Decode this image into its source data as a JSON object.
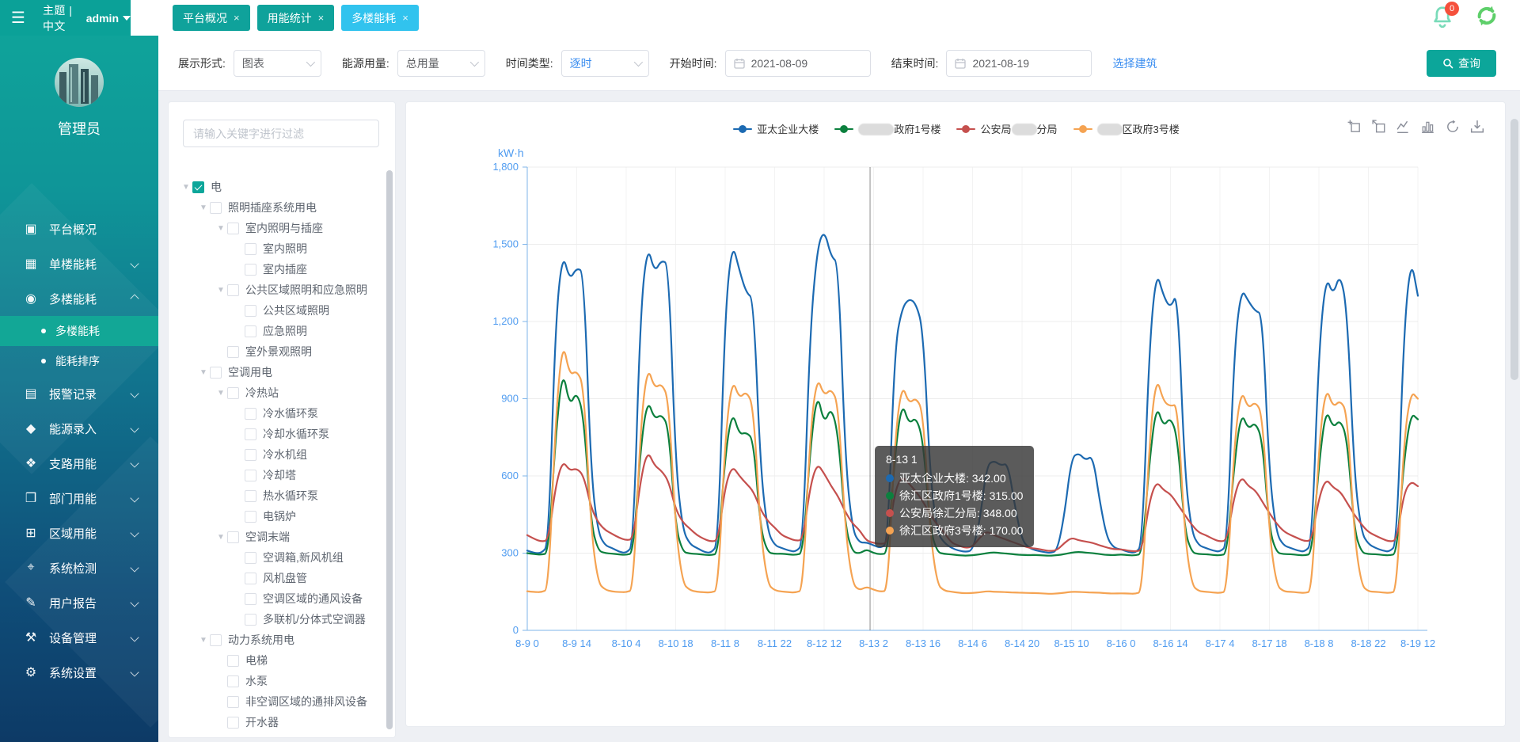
{
  "header": {
    "brand": "主题 | 中文",
    "user": "admin",
    "notification_count": "0",
    "tabs": [
      {
        "label": "平台概况",
        "close": "×",
        "active": false
      },
      {
        "label": "用能统计",
        "close": "×",
        "active": false
      },
      {
        "label": "多楼能耗",
        "close": "×",
        "active": true
      }
    ]
  },
  "sidebar": {
    "role": "管理员",
    "items": [
      {
        "icon": "platform-overview",
        "glyph": "▣",
        "label": "平台概况",
        "chevron": ""
      },
      {
        "icon": "single-building-energy",
        "glyph": "▦",
        "label": "单楼能耗",
        "chevron": "down"
      },
      {
        "icon": "multi-building-energy",
        "glyph": "◉",
        "label": "多楼能耗",
        "chevron": "up",
        "children": [
          {
            "label": "多楼能耗",
            "active": true
          },
          {
            "label": "能耗排序",
            "active": false
          }
        ]
      },
      {
        "icon": "alarm-records",
        "glyph": "▤",
        "label": "报警记录",
        "chevron": "down"
      },
      {
        "icon": "energy-entry",
        "glyph": "◆",
        "label": "能源录入",
        "chevron": "down"
      },
      {
        "icon": "branch-energy",
        "glyph": "❖",
        "label": "支路用能",
        "chevron": "down"
      },
      {
        "icon": "department-energy",
        "glyph": "❒",
        "label": "部门用能",
        "chevron": "down"
      },
      {
        "icon": "area-energy",
        "glyph": "⊞",
        "label": "区域用能",
        "chevron": "down"
      },
      {
        "icon": "system-monitoring",
        "glyph": "⌖",
        "label": "系统检测",
        "chevron": "down"
      },
      {
        "icon": "user-reports",
        "glyph": "✎",
        "label": "用户报告",
        "chevron": "down"
      },
      {
        "icon": "device-management",
        "glyph": "⚒",
        "label": "设备管理",
        "chevron": "down"
      },
      {
        "icon": "system-settings",
        "glyph": "⚙",
        "label": "系统设置",
        "chevron": "down"
      }
    ]
  },
  "filters": {
    "display_label": "展示形式:",
    "display_value": "图表",
    "energy_label": "能源用量:",
    "energy_value": "总用量",
    "timetype_label": "时间类型:",
    "timetype_value": "逐时",
    "start_label": "开始时间:",
    "start_value": "2021-08-09",
    "end_label": "结束时间:",
    "end_value": "2021-08-19",
    "select_building": "选择建筑",
    "query": "查询"
  },
  "tree": {
    "placeholder": "请输入关键字进行过滤",
    "nodes": [
      {
        "label": "电",
        "level": 0,
        "arrow": true,
        "checked": true
      },
      {
        "label": "照明插座系统用电",
        "level": 1,
        "arrow": true,
        "checked": false
      },
      {
        "label": "室内照明与插座",
        "level": 2,
        "arrow": true,
        "checked": false
      },
      {
        "label": "室内照明",
        "level": 3,
        "arrow": false,
        "checked": false
      },
      {
        "label": "室内插座",
        "level": 3,
        "arrow": false,
        "checked": false
      },
      {
        "label": "公共区域照明和应急照明",
        "level": 2,
        "arrow": true,
        "checked": false
      },
      {
        "label": "公共区域照明",
        "level": 3,
        "arrow": false,
        "checked": false
      },
      {
        "label": "应急照明",
        "level": 3,
        "arrow": false,
        "checked": false
      },
      {
        "label": "室外景观照明",
        "level": 2,
        "arrow": false,
        "checked": false
      },
      {
        "label": "空调用电",
        "level": 1,
        "arrow": true,
        "checked": false
      },
      {
        "label": "冷热站",
        "level": 2,
        "arrow": true,
        "checked": false
      },
      {
        "label": "冷水循环泵",
        "level": 3,
        "arrow": false,
        "checked": false
      },
      {
        "label": "冷却水循环泵",
        "level": 3,
        "arrow": false,
        "checked": false
      },
      {
        "label": "冷水机组",
        "level": 3,
        "arrow": false,
        "checked": false
      },
      {
        "label": "冷却塔",
        "level": 3,
        "arrow": false,
        "checked": false
      },
      {
        "label": "热水循环泵",
        "level": 3,
        "arrow": false,
        "checked": false
      },
      {
        "label": "电锅炉",
        "level": 3,
        "arrow": false,
        "checked": false
      },
      {
        "label": "空调末端",
        "level": 2,
        "arrow": true,
        "checked": false
      },
      {
        "label": "空调箱,新风机组",
        "level": 3,
        "arrow": false,
        "checked": false
      },
      {
        "label": "风机盘管",
        "level": 3,
        "arrow": false,
        "checked": false
      },
      {
        "label": "空调区域的通风设备",
        "level": 3,
        "arrow": false,
        "checked": false
      },
      {
        "label": "多联机/分体式空调器",
        "level": 3,
        "arrow": false,
        "checked": false
      },
      {
        "label": "动力系统用电",
        "level": 1,
        "arrow": true,
        "checked": false
      },
      {
        "label": "电梯",
        "level": 2,
        "arrow": false,
        "checked": false
      },
      {
        "label": "水泵",
        "level": 2,
        "arrow": false,
        "checked": false
      },
      {
        "label": "非空调区域的通排风设备",
        "level": 2,
        "arrow": false,
        "checked": false
      },
      {
        "label": "开水器",
        "level": 2,
        "arrow": false,
        "checked": false
      }
    ]
  },
  "chart_data": {
    "type": "line",
    "title": "",
    "ylabel": "kW·h",
    "ylim": [
      0,
      1800
    ],
    "yticks": [
      0,
      300,
      600,
      900,
      1200,
      1500,
      1800
    ],
    "ytick_labels": [
      "0",
      "300",
      "600",
      "900",
      "1,200",
      "1,500",
      "1,800"
    ],
    "x_start": "2021-08-09 00:00",
    "x_step_hours": 2,
    "xtick_every_points": 7,
    "xtick_labels": [
      "8-9 0",
      "8-9 14",
      "8-10 4",
      "8-10 18",
      "8-11 8",
      "8-11 22",
      "8-12 12",
      "8-13 2",
      "8-13 16",
      "8-14 6",
      "8-14 20",
      "8-15 10",
      "8-16 0",
      "8-16 14",
      "8-17 4",
      "8-17 18",
      "8-18 8",
      "8-18 22",
      "8-19 12"
    ],
    "grid": true,
    "legend_position": "top",
    "crosshair_hour": 97,
    "series": [
      {
        "name": "亚太企业大楼",
        "color": "#1c6ab2",
        "values": [
          310,
          300,
          300,
          330,
          1200,
          1470,
          1360,
          1410,
          1390,
          620,
          380,
          330,
          320,
          305,
          300,
          330,
          1230,
          1500,
          1390,
          1440,
          1420,
          640,
          390,
          335,
          320,
          305,
          300,
          335,
          1240,
          1510,
          1400,
          1310,
          1290,
          630,
          385,
          330,
          320,
          310,
          305,
          335,
          1150,
          1480,
          1560,
          1450,
          1430,
          660,
          390,
          340,
          342,
          330,
          320,
          340,
          1100,
          1250,
          1290,
          1270,
          1170,
          600,
          380,
          340,
          320,
          310,
          305,
          310,
          420,
          640,
          660,
          640,
          650,
          480,
          350,
          320,
          310,
          305,
          300,
          310,
          450,
          670,
          690,
          660,
          680,
          500,
          360,
          320,
          315,
          305,
          300,
          330,
          1100,
          1400,
          1300,
          1250,
          1320,
          620,
          380,
          330,
          320,
          310,
          305,
          330,
          1080,
          1330,
          1280,
          1240,
          1230,
          600,
          375,
          330,
          320,
          310,
          305,
          335,
          1090,
          1380,
          1300,
          1390,
          1240,
          610,
          380,
          335,
          320,
          310,
          305,
          335,
          1150,
          1450,
          1300
        ]
      },
      {
        "name": "徐汇区政府1号楼",
        "color": "#0c803e",
        "values": [
          300,
          296,
          294,
          300,
          750,
          1020,
          870,
          930,
          830,
          420,
          310,
          300,
          298,
          295,
          293,
          300,
          700,
          900,
          820,
          840,
          790,
          400,
          305,
          298,
          297,
          294,
          292,
          298,
          680,
          855,
          760,
          770,
          740,
          395,
          303,
          297,
          298,
          295,
          293,
          300,
          690,
          930,
          800,
          870,
          760,
          400,
          305,
          298,
          315,
          300,
          295,
          300,
          680,
          890,
          800,
          830,
          740,
          395,
          303,
          297,
          295,
          292,
          290,
          292,
          295,
          300,
          303,
          300,
          298,
          295,
          293,
          292,
          293,
          291,
          290,
          292,
          296,
          302,
          305,
          302,
          300,
          296,
          293,
          292,
          295,
          292,
          291,
          298,
          650,
          880,
          790,
          830,
          750,
          390,
          303,
          296,
          296,
          293,
          291,
          298,
          640,
          850,
          780,
          810,
          740,
          390,
          302,
          296,
          296,
          293,
          291,
          298,
          645,
          865,
          785,
          820,
          745,
          390,
          303,
          296,
          296,
          293,
          291,
          298,
          650,
          845,
          820
        ]
      },
      {
        "name": "公安局徐汇分局",
        "color": "#c5504e",
        "values": [
          370,
          355,
          345,
          350,
          560,
          660,
          620,
          630,
          600,
          480,
          420,
          390,
          375,
          360,
          350,
          355,
          580,
          700,
          640,
          620,
          580,
          470,
          420,
          395,
          370,
          355,
          345,
          350,
          560,
          640,
          600,
          570,
          540,
          470,
          425,
          400,
          370,
          358,
          348,
          352,
          555,
          650,
          610,
          560,
          520,
          460,
          415,
          390,
          348,
          340,
          335,
          340,
          540,
          600,
          570,
          540,
          500,
          450,
          410,
          380,
          340,
          330,
          320,
          325,
          360,
          385,
          370,
          360,
          350,
          340,
          330,
          320,
          318,
          312,
          308,
          312,
          340,
          360,
          350,
          345,
          340,
          330,
          322,
          315,
          315,
          310,
          306,
          312,
          500,
          580,
          545,
          530,
          490,
          450,
          410,
          380,
          370,
          355,
          345,
          350,
          520,
          600,
          560,
          545,
          500,
          455,
          415,
          385,
          370,
          358,
          346,
          350,
          515,
          590,
          555,
          540,
          495,
          450,
          412,
          382,
          368,
          355,
          345,
          350,
          530,
          580,
          560
        ]
      },
      {
        "name": "徐汇区政府3号楼",
        "color": "#f5a352",
        "values": [
          152,
          149,
          148,
          160,
          820,
          1130,
          990,
          1010,
          950,
          400,
          185,
          158,
          151,
          149,
          148,
          158,
          780,
          1030,
          940,
          960,
          900,
          390,
          182,
          156,
          150,
          148,
          147,
          156,
          750,
          980,
          900,
          930,
          870,
          385,
          180,
          155,
          151,
          148,
          147,
          157,
          760,
          990,
          910,
          940,
          880,
          388,
          181,
          155,
          170,
          158,
          150,
          155,
          740,
          960,
          880,
          905,
          850,
          380,
          178,
          154,
          150,
          146,
          144,
          145,
          148,
          152,
          150,
          149,
          148,
          147,
          146,
          145,
          145,
          143,
          142,
          143,
          146,
          150,
          149,
          148,
          147,
          146,
          144,
          143,
          144,
          143,
          142,
          150,
          730,
          990,
          890,
          870,
          880,
          375,
          176,
          152,
          150,
          147,
          145,
          152,
          720,
          940,
          860,
          890,
          840,
          372,
          175,
          151,
          150,
          147,
          145,
          152,
          725,
          950,
          865,
          895,
          845,
          373,
          176,
          151,
          150,
          147,
          145,
          152,
          730,
          930,
          900
        ]
      }
    ],
    "legend": [
      {
        "pre": "亚太企业大楼",
        "redacted": "",
        "post": "",
        "color": "#1c6ab2"
      },
      {
        "pre": "",
        "redacted": "徐汇区",
        "post": "政府1号楼",
        "color": "#0c803e"
      },
      {
        "pre": "公安局",
        "redacted": "徐汇",
        "post": "分局",
        "color": "#c5504e"
      },
      {
        "pre": "",
        "redacted": "徐汇",
        "post": "区政府3号楼",
        "color": "#f5a352"
      }
    ],
    "tooltip": {
      "title": "8-13 1",
      "rows": [
        {
          "name": "亚太企业大楼",
          "value": "342.00",
          "color": "#1c6ab2"
        },
        {
          "name": "徐汇区政府1号楼",
          "value": "315.00",
          "color": "#0c803e"
        },
        {
          "name": "公安局徐汇分局",
          "value": "348.00",
          "color": "#c5504e"
        },
        {
          "name": "徐汇区政府3号楼",
          "value": "170.00",
          "color": "#f5a352"
        }
      ]
    }
  },
  "colors": {
    "accent_teal": "#0ba198",
    "active_tab": "#31c3ee",
    "link_blue": "#3b8ef0",
    "badge_red": "#f5503c",
    "axis_label_blue": "#4e9bf0"
  }
}
